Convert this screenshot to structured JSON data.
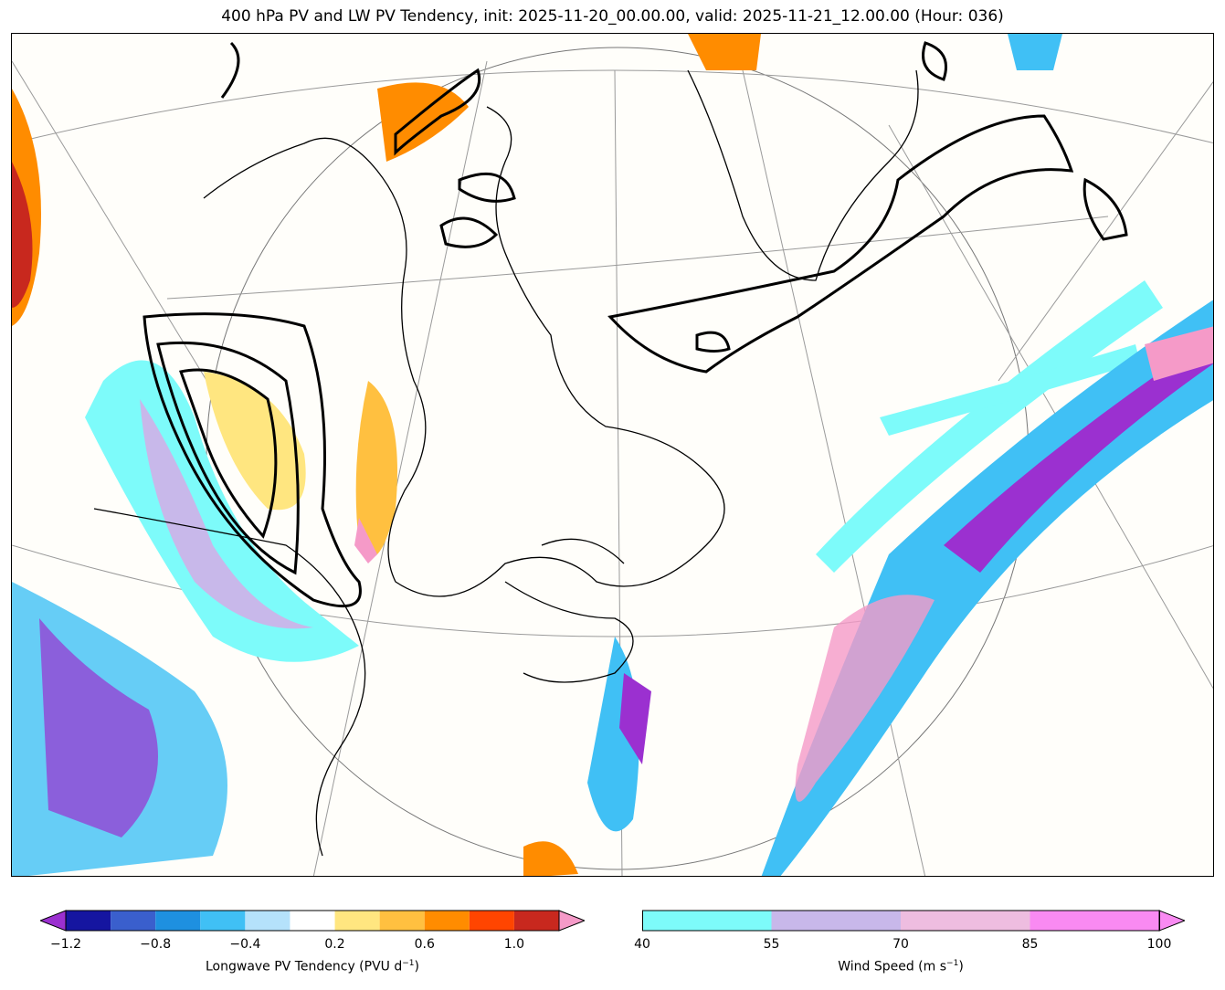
{
  "title": "400 hPa PV and LW PV Tendency, init: 2025-11-20_00.00.00, valid: 2025-11-21_12.00.00 (Hour: 036)",
  "map": {
    "projection_hint": "polar stereographic North Atlantic",
    "fields": [
      "400 hPa PV contours (black)",
      "longwave PV tendency (filled)",
      "wind speed (filled)"
    ]
  },
  "colorbars": {
    "pv_tendency": {
      "label_main": "Longwave PV Tendency (PVU d",
      "label_sup": "−1",
      "label_end": ")",
      "ticks": [
        "−1.2",
        "−0.8",
        "−0.4",
        "0.2",
        "0.6",
        "1.0"
      ],
      "colors": [
        "#1515a0",
        "#3a5fcd",
        "#1e90e0",
        "#40c0f5",
        "#b5e2fb",
        "#ffffff",
        "#ffe680",
        "#ffc040",
        "#ff8c00",
        "#ff4500",
        "#c8281e"
      ],
      "under_color": "#9b30d0",
      "over_color": "#f59ac8"
    },
    "wind_speed": {
      "label_main": "Wind Speed (m s",
      "label_sup": "−1",
      "label_end": ")",
      "ticks": [
        "40",
        "55",
        "70",
        "85",
        "100"
      ],
      "colors": [
        "#7dfbfa",
        "#c8b8ea",
        "#eebde0",
        "#f98af2"
      ],
      "over_color": "#f98af2"
    }
  }
}
